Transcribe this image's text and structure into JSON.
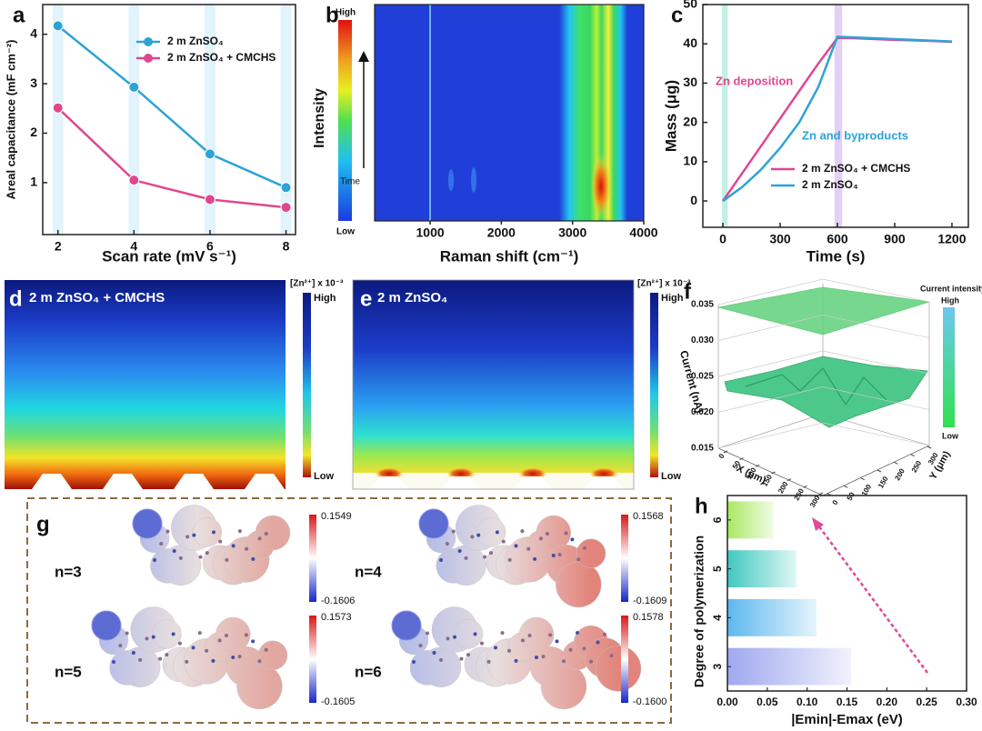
{
  "chart_data": [
    {
      "type": "line",
      "panel": "a",
      "x": [
        2,
        4,
        6,
        8
      ],
      "series": [
        {
          "name": "2 m ZnSO₄",
          "color": "#2ea3d6",
          "values": [
            4.17,
            2.93,
            1.58,
            0.9
          ]
        },
        {
          "name": "2 m ZnSO₄ + CMCHS",
          "color": "#e0468f",
          "values": [
            2.51,
            1.05,
            0.66,
            0.5
          ]
        }
      ],
      "xlabel": "Scan rate (mV s⁻¹)",
      "ylabel": "Areal capacitance (mF cm⁻²)",
      "xlim": [
        1.6,
        8.25
      ],
      "xticks": [
        2,
        4,
        6,
        8
      ],
      "ylim": [
        -0.05,
        4.6
      ],
      "yticks": [
        1,
        2,
        3,
        4
      ],
      "markers": true,
      "x_band_color": "#e2f4fb",
      "legend": "upper-right"
    },
    {
      "type": "heatmap",
      "panel": "b",
      "xlabel": "Raman shift (cm⁻¹)",
      "ylabel": "Intensity",
      "xlim": [
        220,
        4000
      ],
      "xticks": [
        1000,
        2000,
        3000,
        4000
      ],
      "colorbar_ticks": [
        "High",
        "Low"
      ],
      "arrow_label": "Time"
    },
    {
      "type": "line",
      "panel": "c",
      "x": [
        0,
        100,
        200,
        300,
        400,
        500,
        600,
        700,
        800,
        900,
        1000,
        1100,
        1200
      ],
      "series": [
        {
          "name": "2 m ZnSO₄ + CMCHS",
          "color": "#e0468f",
          "values": [
            0,
            7,
            14,
            21,
            28,
            35,
            41.5,
            41.4,
            41.2,
            41,
            40.9,
            40.7,
            40.5
          ]
        },
        {
          "name": "2 m ZnSO₄",
          "color": "#2ea3d6",
          "values": [
            0,
            3.5,
            8,
            13.5,
            20,
            29,
            41.8,
            41.6,
            41.4,
            41.2,
            41,
            40.8,
            40.6
          ]
        }
      ],
      "xlabel": "Time (s)",
      "ylabel": "Mass (μg)",
      "xlim": [
        -105,
        1286
      ],
      "xticks": [
        0,
        300,
        600,
        900,
        1200
      ],
      "ylim": [
        -6.7,
        50
      ],
      "yticks": [
        0,
        10,
        20,
        30,
        40,
        50
      ],
      "shaded_x": [
        {
          "x": [
            -5,
            25
          ],
          "color": "#c4efe4"
        },
        {
          "x": [
            585,
            625
          ],
          "color": "#e4d0f4"
        }
      ],
      "annotations": [
        {
          "text": "Zn deposition",
          "color": "#e0468f"
        },
        {
          "text": "Zn and byproducts",
          "color": "#2ea3d6"
        }
      ],
      "legend": "lower-right"
    },
    {
      "type": "contour",
      "panel": "d",
      "title": "2 m ZnSO₄ + CMCHS",
      "colorbar_label": "[Zn²⁺] x 10⁻³",
      "colorbar_ticks": [
        "High",
        "Low"
      ]
    },
    {
      "type": "contour",
      "panel": "e",
      "title": "2 m ZnSO₄",
      "colorbar_label": "[Zn²⁺] x 10⁻³",
      "colorbar_ticks": [
        "High",
        "Low"
      ]
    },
    {
      "type": "surface3d",
      "panel": "f",
      "xlabel": "X (μm)",
      "ylabel": "Y (μm)",
      "zlabel": "Current (nA)",
      "xlim": [
        0,
        300
      ],
      "xticks": [
        0,
        50,
        100,
        150,
        200,
        250,
        300
      ],
      "ylim": [
        0,
        300
      ],
      "yticks": [
        0,
        50,
        100,
        150,
        200,
        250,
        300
      ],
      "zlim": [
        0.015,
        0.035
      ],
      "zticks": [
        0.015,
        {
          "value": 0.02,
          "label": "0.020"
        },
        0.025,
        {
          "value": 0.03,
          "label": "0.030"
        },
        0.035
      ],
      "colorbar_label": "Current intensity",
      "colorbar_ticks": [
        "High",
        "Low"
      ]
    },
    {
      "type": "esp",
      "panel": "g",
      "items": [
        {
          "label": "n=3",
          "max": 0.1549,
          "min": -0.1606
        },
        {
          "label": "n=4",
          "max": 0.1568,
          "min": -0.1609
        },
        {
          "label": "n=5",
          "max": 0.1573,
          "min": -0.1605
        },
        {
          "label": "n=6",
          "max": 0.1578,
          "min": {
            "value": -0.16,
            "label": "-0.1600"
          }
        }
      ]
    },
    {
      "type": "barh",
      "panel": "h",
      "categories": [
        "3",
        "4",
        "5",
        "6"
      ],
      "values": [
        0.155,
        0.112,
        0.087,
        0.058
      ],
      "colors": [
        "#9fa8f0",
        "#5cb8ee",
        "#40c8c0",
        "#a8e860"
      ],
      "xlabel": "|Emin|-Emax (eV)",
      "ylabel": "Degree of polymerization",
      "xlim": [
        0,
        0.3
      ],
      "xticks": [
        {
          "value": 0,
          "label": "0.00"
        },
        0.05,
        {
          "value": 0.1,
          "label": "0.10"
        },
        0.15,
        {
          "value": 0.2,
          "label": "0.20"
        },
        0.25,
        {
          "value": 0.3,
          "label": "0.30"
        }
      ]
    }
  ]
}
